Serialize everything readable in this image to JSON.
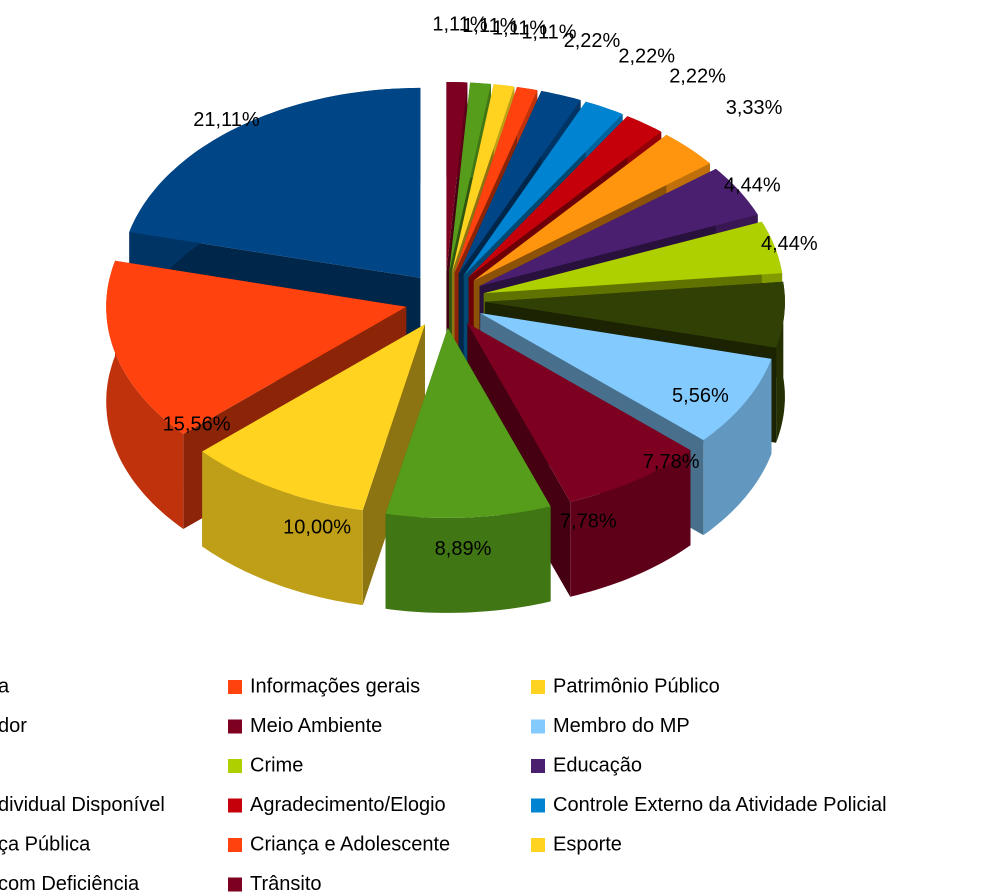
{
  "chart_data": {
    "type": "pie3d",
    "categories": [
      "a",
      "Informações gerais",
      "Patrimônio Público",
      "dor",
      "Meio Ambiente",
      "Membro do MP",
      null,
      "Crime",
      "Educação",
      "dividual Disponível",
      "Agradecimento/Elogio",
      "Controle Externo da Atividade Policial",
      "ça Pública",
      "Criança e Adolescente",
      "Esporte",
      "com Deficiência",
      "Trânsito"
    ],
    "values": [
      21.11,
      15.56,
      10.0,
      8.89,
      7.78,
      7.78,
      5.56,
      4.44,
      4.44,
      3.33,
      2.22,
      2.22,
      2.22,
      1.11,
      1.11,
      1.11,
      1.11
    ],
    "value_labels": [
      "21,11%",
      "15,56%",
      "10,00%",
      "8,89%",
      "7,78%",
      "7,78%",
      "5,56%",
      "4,44%",
      "4,44%",
      "3,33%",
      "2,22%",
      "2,22%",
      "2,22%",
      "1,11%",
      "1,11%",
      "1,11%",
      "1,11%"
    ],
    "colors": [
      "#004586",
      "#ff420e",
      "#ffd320",
      "#579d1c",
      "#7e0021",
      "#83caff",
      "#314004",
      "#aecf00",
      "#4b1f6f",
      "#ff950e",
      "#c5000b",
      "#0084d1",
      "#004586",
      "#ff420e",
      "#ffd320",
      "#579d1c",
      "#7e0021"
    ],
    "legend": "bottom"
  }
}
